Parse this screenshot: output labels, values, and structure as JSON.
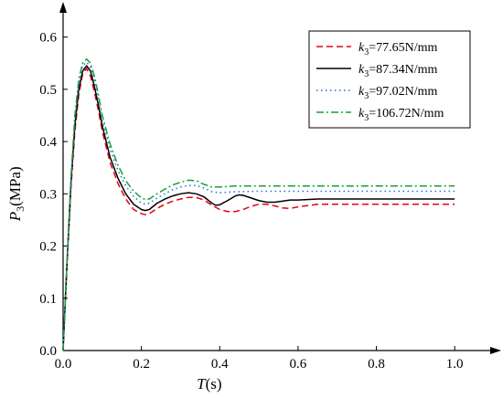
{
  "chart_data": {
    "type": "line",
    "title": "",
    "xlabel": {
      "italic": "T",
      "rest": "(s)"
    },
    "ylabel": {
      "italic": "P",
      "sub": "3",
      "rest": "(MPa)"
    },
    "xlim": [
      0.0,
      1.1
    ],
    "ylim": [
      0.0,
      0.65
    ],
    "xticks": [
      "0.0",
      "0.2",
      "0.4",
      "0.6",
      "0.8",
      "1.0"
    ],
    "yticks": [
      "0.0",
      "0.1",
      "0.2",
      "0.3",
      "0.4",
      "0.5",
      "0.6"
    ],
    "grid": false,
    "legend": "top-right",
    "series": [
      {
        "name": "k3=77.65N/mm",
        "label_parts": {
          "italic": "k",
          "sub": "3",
          "rest": "=77.65N/mm"
        },
        "color": "#e8000b",
        "dash": "dashed",
        "x": [
          0,
          0.01,
          0.02,
          0.03,
          0.04,
          0.05,
          0.06,
          0.07,
          0.08,
          0.09,
          0.1,
          0.12,
          0.14,
          0.16,
          0.18,
          0.2,
          0.21,
          0.22,
          0.24,
          0.26,
          0.28,
          0.3,
          0.32,
          0.34,
          0.36,
          0.38,
          0.4,
          0.42,
          0.44,
          0.46,
          0.48,
          0.5,
          0.52,
          0.54,
          0.56,
          0.58,
          0.6,
          0.65,
          0.7,
          0.8,
          0.9,
          1.0
        ],
        "y": [
          0,
          0.16,
          0.31,
          0.42,
          0.49,
          0.53,
          0.54,
          0.525,
          0.495,
          0.46,
          0.42,
          0.36,
          0.32,
          0.29,
          0.27,
          0.262,
          0.26,
          0.262,
          0.272,
          0.28,
          0.286,
          0.29,
          0.293,
          0.293,
          0.288,
          0.278,
          0.27,
          0.266,
          0.266,
          0.27,
          0.276,
          0.28,
          0.28,
          0.277,
          0.273,
          0.272,
          0.275,
          0.28,
          0.28,
          0.28,
          0.28,
          0.28
        ]
      },
      {
        "name": "k3=87.34N/mm",
        "label_parts": {
          "italic": "k",
          "sub": "3",
          "rest": "=87.34N/mm"
        },
        "color": "#000000",
        "dash": "solid",
        "x": [
          0,
          0.01,
          0.02,
          0.03,
          0.04,
          0.05,
          0.06,
          0.07,
          0.08,
          0.09,
          0.1,
          0.12,
          0.14,
          0.16,
          0.18,
          0.2,
          0.21,
          0.22,
          0.24,
          0.26,
          0.28,
          0.3,
          0.32,
          0.34,
          0.36,
          0.38,
          0.39,
          0.4,
          0.42,
          0.44,
          0.45,
          0.46,
          0.48,
          0.5,
          0.52,
          0.54,
          0.56,
          0.58,
          0.6,
          0.65,
          0.7,
          0.8,
          0.9,
          1.0
        ],
        "y": [
          0,
          0.17,
          0.32,
          0.43,
          0.5,
          0.535,
          0.545,
          0.535,
          0.505,
          0.47,
          0.43,
          0.37,
          0.33,
          0.3,
          0.28,
          0.27,
          0.268,
          0.27,
          0.282,
          0.29,
          0.296,
          0.3,
          0.302,
          0.3,
          0.294,
          0.282,
          0.278,
          0.279,
          0.287,
          0.296,
          0.298,
          0.297,
          0.292,
          0.287,
          0.284,
          0.284,
          0.286,
          0.288,
          0.288,
          0.29,
          0.29,
          0.29,
          0.29,
          0.29
        ]
      },
      {
        "name": "k3=97.02N/mm",
        "label_parts": {
          "italic": "k",
          "sub": "3",
          "rest": "=97.02N/mm"
        },
        "color": "#1f6fd1",
        "dash": "dotted",
        "x": [
          0,
          0.01,
          0.02,
          0.03,
          0.04,
          0.05,
          0.06,
          0.07,
          0.08,
          0.09,
          0.1,
          0.12,
          0.14,
          0.16,
          0.18,
          0.2,
          0.21,
          0.22,
          0.24,
          0.26,
          0.28,
          0.3,
          0.32,
          0.34,
          0.36,
          0.38,
          0.4,
          0.42,
          0.44,
          0.5,
          0.6,
          0.7,
          0.8,
          0.9,
          1.0
        ],
        "y": [
          0,
          0.17,
          0.32,
          0.44,
          0.51,
          0.545,
          0.552,
          0.542,
          0.515,
          0.48,
          0.44,
          0.385,
          0.345,
          0.315,
          0.295,
          0.282,
          0.28,
          0.282,
          0.292,
          0.3,
          0.308,
          0.313,
          0.316,
          0.316,
          0.311,
          0.304,
          0.302,
          0.303,
          0.304,
          0.305,
          0.305,
          0.305,
          0.305,
          0.305,
          0.305
        ]
      },
      {
        "name": "k3=106.72N/mm",
        "label_parts": {
          "italic": "k",
          "sub": "3",
          "rest": "=106.72N/mm"
        },
        "color": "#1a9e3a",
        "dash": "dashdot",
        "x": [
          0,
          0.01,
          0.02,
          0.03,
          0.04,
          0.05,
          0.06,
          0.07,
          0.08,
          0.09,
          0.1,
          0.12,
          0.14,
          0.16,
          0.18,
          0.2,
          0.21,
          0.22,
          0.24,
          0.26,
          0.28,
          0.3,
          0.32,
          0.34,
          0.36,
          0.38,
          0.4,
          0.42,
          0.44,
          0.5,
          0.6,
          0.7,
          0.8,
          0.9,
          1.0
        ],
        "y": [
          0,
          0.17,
          0.33,
          0.45,
          0.52,
          0.55,
          0.558,
          0.55,
          0.525,
          0.49,
          0.45,
          0.395,
          0.355,
          0.325,
          0.305,
          0.292,
          0.289,
          0.29,
          0.3,
          0.309,
          0.317,
          0.322,
          0.326,
          0.325,
          0.318,
          0.313,
          0.313,
          0.314,
          0.315,
          0.315,
          0.315,
          0.315,
          0.315,
          0.315,
          0.315
        ]
      }
    ]
  }
}
